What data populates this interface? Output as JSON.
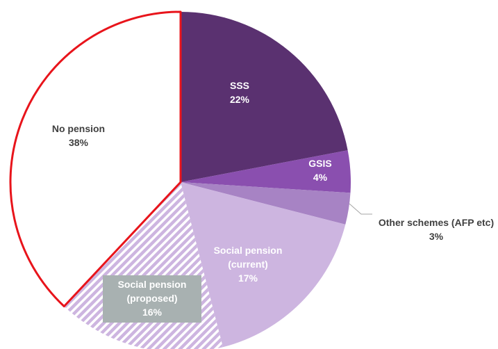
{
  "chart_data": {
    "type": "pie",
    "categories": [
      "SSS",
      "GSIS",
      "Other schemes (AFP etc)",
      "Social pension (current)",
      "Social pension (proposed)",
      "No pension"
    ],
    "values": [
      22,
      4,
      3,
      17,
      16,
      38
    ],
    "value_labels": [
      "22%",
      "4%",
      "3%",
      "17%",
      "16%",
      "38%"
    ],
    "colors": [
      "#5a3170",
      "#8a4faf",
      "#a783c4",
      "#cdb5e0",
      "#cdb5e0",
      "#ffffff"
    ],
    "hatched": [
      4
    ],
    "outlined": {
      "index": 5,
      "color": "#e8141b"
    }
  }
}
